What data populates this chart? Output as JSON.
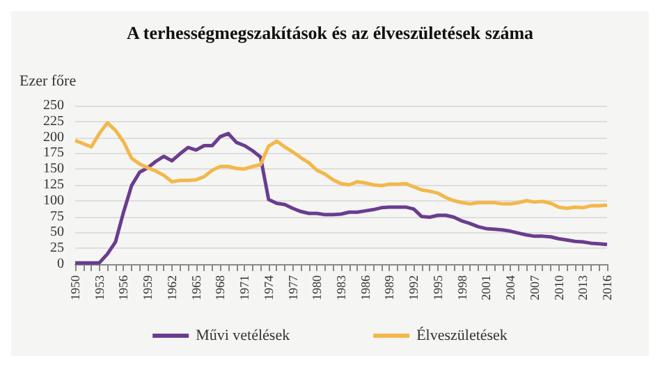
{
  "chart_data": {
    "type": "line",
    "title": "A terhességmegszakítások és az élveszületések száma",
    "ylabel": "Ezer főre",
    "categories": [
      "1950",
      null,
      null,
      "1953",
      null,
      null,
      "1956",
      null,
      null,
      "1959",
      null,
      null,
      "1962",
      null,
      null,
      "1965",
      null,
      null,
      "1968",
      null,
      null,
      "1971",
      null,
      null,
      "1974",
      null,
      null,
      "1977",
      null,
      null,
      "1980",
      null,
      null,
      "1983",
      null,
      null,
      "1986",
      null,
      null,
      "1989",
      null,
      null,
      "1992",
      null,
      null,
      "1995",
      null,
      null,
      "1998",
      null,
      null,
      "2001",
      null,
      null,
      "2004",
      null,
      null,
      "2007",
      null,
      null,
      "2010",
      null,
      null,
      "2013",
      null,
      null,
      "2016"
    ],
    "series": [
      {
        "name": "Művi vetélések",
        "color": "#6a3d8f",
        "values": [
          2,
          2,
          2,
          2,
          16,
          35,
          82,
          124,
          145,
          152,
          162,
          170,
          163,
          174,
          184,
          180,
          187,
          187,
          201,
          206,
          192,
          187,
          179,
          169,
          102,
          96,
          94,
          88,
          83,
          80,
          80,
          78,
          78,
          79,
          82,
          82,
          84,
          86,
          89,
          90,
          90,
          90,
          87,
          75,
          74,
          77,
          77,
          74,
          68,
          64,
          59,
          56,
          55,
          54,
          52,
          49,
          46,
          44,
          44,
          43,
          40,
          38,
          36,
          35,
          33,
          32,
          31
        ]
      },
      {
        "name": "Élveszületések",
        "color": "#f2b84a",
        "values": [
          195,
          190,
          185,
          206,
          223,
          211,
          193,
          167,
          158,
          152,
          147,
          140,
          130,
          132,
          132,
          133,
          138,
          148,
          154,
          154,
          151,
          150,
          154,
          157,
          186,
          194,
          185,
          177,
          168,
          160,
          148,
          142,
          133,
          127,
          125,
          130,
          128,
          125,
          124,
          126,
          126,
          127,
          122,
          117,
          115,
          112,
          105,
          100,
          97,
          95,
          97,
          97,
          97,
          95,
          95,
          97,
          100,
          98,
          99,
          96,
          90,
          88,
          90,
          89,
          92,
          92,
          93
        ]
      }
    ],
    "ylim": [
      0,
      250
    ],
    "yticks": [
      0,
      25,
      50,
      75,
      100,
      125,
      150,
      175,
      200,
      225,
      250
    ],
    "grid": "y",
    "legend": "bottom",
    "marker": "none",
    "line_style": "solid"
  }
}
